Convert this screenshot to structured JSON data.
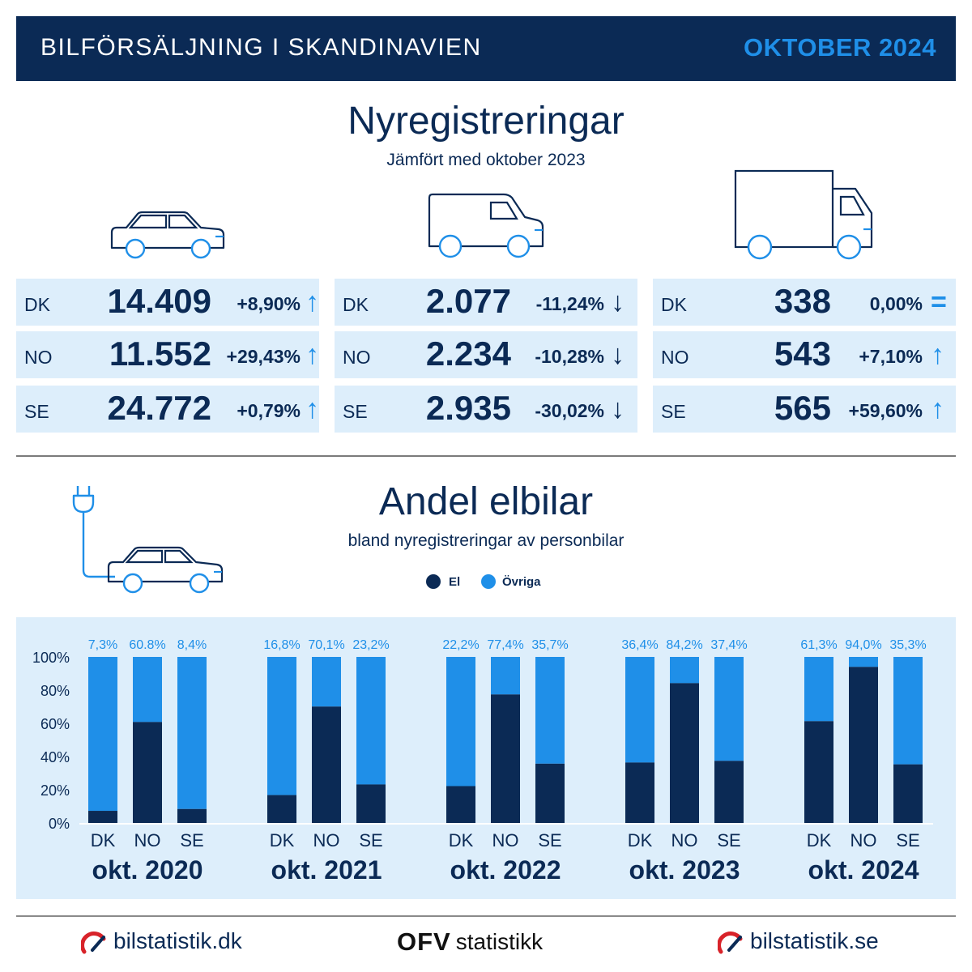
{
  "header": {
    "title": "BILFÖRSÄLJNING I SKANDINAVIEN",
    "date": "OKTOBER 2024"
  },
  "registrations": {
    "title": "Nyregistreringar",
    "subtitle": "Jämfört med oktober 2023",
    "groups": [
      {
        "icon": "car-icon",
        "rows": [
          {
            "country": "DK",
            "value": "14.409",
            "change": "+8,90%",
            "trend": "up"
          },
          {
            "country": "NO",
            "value": "11.552",
            "change": "+29,43%",
            "trend": "up"
          },
          {
            "country": "SE",
            "value": "24.772",
            "change": "+0,79%",
            "trend": "up"
          }
        ]
      },
      {
        "icon": "van-icon",
        "rows": [
          {
            "country": "DK",
            "value": "2.077",
            "change": "-11,24%",
            "trend": "down"
          },
          {
            "country": "NO",
            "value": "2.234",
            "change": "-10,28%",
            "trend": "down"
          },
          {
            "country": "SE",
            "value": "2.935",
            "change": "-30,02%",
            "trend": "down"
          }
        ]
      },
      {
        "icon": "truck-icon",
        "rows": [
          {
            "country": "DK",
            "value": "338",
            "change": "0,00%",
            "trend": "equal"
          },
          {
            "country": "NO",
            "value": "543",
            "change": "+7,10%",
            "trend": "up"
          },
          {
            "country": "SE",
            "value": "565",
            "change": "+59,60%",
            "trend": "up"
          }
        ]
      }
    ],
    "trend_symbols": {
      "up": "↑",
      "down": "↓",
      "equal": "="
    }
  },
  "ev_share": {
    "title": "Andel elbilar",
    "subtitle": "bland nyregistreringar av personbilar",
    "icon": "ev-charging-car-icon",
    "legend": [
      {
        "label": "El",
        "color": "#0b2a55"
      },
      {
        "label": "Övriga",
        "color": "#1f8fe8"
      }
    ]
  },
  "chart_data": {
    "type": "bar",
    "stacked": true,
    "y_ticks": [
      "100%",
      "80%",
      "60%",
      "40%",
      "20%",
      "0%"
    ],
    "ylim": [
      0,
      100
    ],
    "grid": false,
    "legend_position": "top",
    "colors": {
      "el": "#0b2a55",
      "other": "#1f8fe8"
    },
    "groups": [
      {
        "label": "okt. 2020",
        "bars": [
          {
            "category": "DK",
            "value": 7.3,
            "label": "7,3%"
          },
          {
            "category": "NO",
            "value": 60.8,
            "label": "60.8%"
          },
          {
            "category": "SE",
            "value": 8.4,
            "label": "8,4%"
          }
        ]
      },
      {
        "label": "okt. 2021",
        "bars": [
          {
            "category": "DK",
            "value": 16.8,
            "label": "16,8%"
          },
          {
            "category": "NO",
            "value": 70.1,
            "label": "70,1%"
          },
          {
            "category": "SE",
            "value": 23.2,
            "label": "23,2%"
          }
        ]
      },
      {
        "label": "okt. 2022",
        "bars": [
          {
            "category": "DK",
            "value": 22.2,
            "label": "22,2%"
          },
          {
            "category": "NO",
            "value": 77.4,
            "label": "77,4%"
          },
          {
            "category": "SE",
            "value": 35.7,
            "label": "35,7%"
          }
        ]
      },
      {
        "label": "okt. 2023",
        "bars": [
          {
            "category": "DK",
            "value": 36.4,
            "label": "36,4%"
          },
          {
            "category": "NO",
            "value": 84.2,
            "label": "84,2%"
          },
          {
            "category": "SE",
            "value": 37.4,
            "label": "37,4%"
          }
        ]
      },
      {
        "label": "okt. 2024",
        "bars": [
          {
            "category": "DK",
            "value": 61.3,
            "label": "61,3%"
          },
          {
            "category": "NO",
            "value": 94.0,
            "label": "94,0%"
          },
          {
            "category": "SE",
            "value": 35.3,
            "label": "35,3%"
          }
        ]
      }
    ]
  },
  "footer": {
    "left": "bilstatistik.dk",
    "center_mark": "OFV",
    "center_text": "statistikk",
    "right": "bilstatistik.se"
  }
}
